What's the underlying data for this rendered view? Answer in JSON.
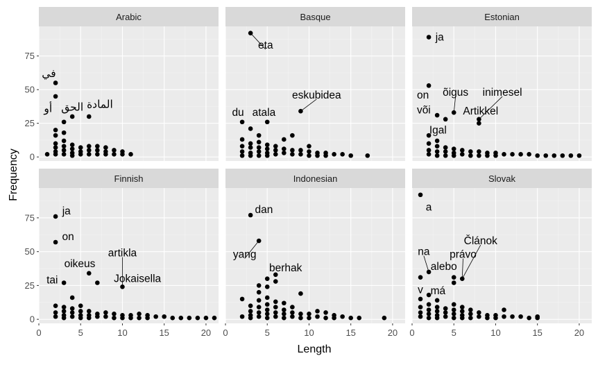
{
  "chart_data": {
    "type": "scatter",
    "xlabel": "Length",
    "ylabel": "Frequency",
    "xlim": [
      0,
      21.5
    ],
    "ylim": [
      -3,
      97
    ],
    "x_ticks": [
      0,
      5,
      10,
      15,
      20
    ],
    "y_ticks": [
      0,
      25,
      50,
      75
    ],
    "grid": true,
    "panels": [
      {
        "name": "Arabic",
        "points": [
          [
            1,
            2
          ],
          [
            2,
            55
          ],
          [
            2,
            45
          ],
          [
            2,
            20
          ],
          [
            2,
            16
          ],
          [
            2,
            10
          ],
          [
            2,
            7
          ],
          [
            2,
            4
          ],
          [
            2,
            2
          ],
          [
            3,
            26
          ],
          [
            3,
            18
          ],
          [
            3,
            12
          ],
          [
            3,
            8
          ],
          [
            3,
            5
          ],
          [
            3,
            2
          ],
          [
            4,
            30
          ],
          [
            4,
            9
          ],
          [
            4,
            6
          ],
          [
            4,
            3
          ],
          [
            4,
            1
          ],
          [
            5,
            7
          ],
          [
            5,
            4
          ],
          [
            5,
            2
          ],
          [
            6,
            30
          ],
          [
            6,
            8
          ],
          [
            6,
            5
          ],
          [
            6,
            2
          ],
          [
            7,
            8
          ],
          [
            7,
            5
          ],
          [
            7,
            2
          ],
          [
            8,
            7
          ],
          [
            8,
            4
          ],
          [
            8,
            2
          ],
          [
            9,
            5
          ],
          [
            9,
            2
          ],
          [
            10,
            4
          ],
          [
            10,
            2
          ],
          [
            11,
            2
          ]
        ],
        "labels": [
          {
            "text": "في",
            "x": 1.2,
            "y": 62
          },
          {
            "text": "أو",
            "x": 1.1,
            "y": 36
          },
          {
            "text": "الحق",
            "x": 4.0,
            "y": 37
          },
          {
            "text": "المادة",
            "x": 7.3,
            "y": 39
          }
        ]
      },
      {
        "name": "Basque",
        "points": [
          [
            2,
            26
          ],
          [
            2,
            13
          ],
          [
            2,
            8
          ],
          [
            2,
            4
          ],
          [
            2,
            1
          ],
          [
            3,
            92
          ],
          [
            3,
            21
          ],
          [
            3,
            10
          ],
          [
            3,
            7
          ],
          [
            3,
            3
          ],
          [
            3,
            1
          ],
          [
            4,
            16
          ],
          [
            4,
            11
          ],
          [
            4,
            7
          ],
          [
            4,
            4
          ],
          [
            4,
            1
          ],
          [
            5,
            26
          ],
          [
            5,
            9
          ],
          [
            5,
            6
          ],
          [
            5,
            3
          ],
          [
            5,
            1
          ],
          [
            6,
            8
          ],
          [
            6,
            5
          ],
          [
            6,
            2
          ],
          [
            7,
            13
          ],
          [
            7,
            6
          ],
          [
            7,
            3
          ],
          [
            8,
            16
          ],
          [
            8,
            5
          ],
          [
            8,
            2
          ],
          [
            9,
            34
          ],
          [
            9,
            5
          ],
          [
            9,
            2
          ],
          [
            10,
            8
          ],
          [
            10,
            4
          ],
          [
            10,
            1
          ],
          [
            11,
            3
          ],
          [
            11,
            1
          ],
          [
            12,
            3
          ],
          [
            12,
            1
          ],
          [
            13,
            2
          ],
          [
            14,
            2
          ],
          [
            15,
            1
          ],
          [
            17,
            1
          ]
        ],
        "labels": [
          {
            "text": "eta",
            "x": 4.8,
            "y": 83
          },
          {
            "text": "du",
            "x": 1.5,
            "y": 33
          },
          {
            "text": "atala",
            "x": 4.6,
            "y": 33
          },
          {
            "text": "eskubidea",
            "x": 10.9,
            "y": 46
          }
        ]
      },
      {
        "name": "Estonian",
        "points": [
          [
            2,
            89
          ],
          [
            2,
            53
          ],
          [
            2,
            16
          ],
          [
            2,
            10
          ],
          [
            2,
            5
          ],
          [
            2,
            2
          ],
          [
            3,
            31
          ],
          [
            3,
            12
          ],
          [
            3,
            8
          ],
          [
            3,
            4
          ],
          [
            3,
            1
          ],
          [
            4,
            28
          ],
          [
            4,
            7
          ],
          [
            4,
            4
          ],
          [
            4,
            1
          ],
          [
            5,
            33
          ],
          [
            5,
            6
          ],
          [
            5,
            3
          ],
          [
            5,
            1
          ],
          [
            6,
            5
          ],
          [
            6,
            2
          ],
          [
            7,
            4
          ],
          [
            7,
            1
          ],
          [
            8,
            28
          ],
          [
            8,
            25
          ],
          [
            8,
            4
          ],
          [
            8,
            1
          ],
          [
            9,
            3
          ],
          [
            9,
            1
          ],
          [
            10,
            3
          ],
          [
            10,
            1
          ],
          [
            11,
            2
          ],
          [
            12,
            2
          ],
          [
            13,
            2
          ],
          [
            14,
            2
          ],
          [
            15,
            1
          ],
          [
            16,
            1
          ],
          [
            17,
            1
          ],
          [
            18,
            1
          ],
          [
            19,
            1
          ],
          [
            20,
            1
          ]
        ],
        "labels": [
          {
            "text": "ja",
            "x": 3.3,
            "y": 89
          },
          {
            "text": "on",
            "x": 1.3,
            "y": 46
          },
          {
            "text": "õigus",
            "x": 5.2,
            "y": 48
          },
          {
            "text": "inimesel",
            "x": 10.8,
            "y": 48
          },
          {
            "text": "või",
            "x": 1.4,
            "y": 35
          },
          {
            "text": "Artikkel",
            "x": 8.2,
            "y": 34
          },
          {
            "text": "Igal",
            "x": 3.1,
            "y": 20
          }
        ]
      },
      {
        "name": "Finnish",
        "points": [
          [
            2,
            76
          ],
          [
            2,
            57
          ],
          [
            2,
            10
          ],
          [
            2,
            5
          ],
          [
            2,
            2
          ],
          [
            3,
            27
          ],
          [
            3,
            9
          ],
          [
            3,
            6
          ],
          [
            3,
            3
          ],
          [
            3,
            1
          ],
          [
            4,
            16
          ],
          [
            4,
            8
          ],
          [
            4,
            5
          ],
          [
            4,
            2
          ],
          [
            5,
            10
          ],
          [
            5,
            6
          ],
          [
            5,
            3
          ],
          [
            5,
            1
          ],
          [
            6,
            34
          ],
          [
            6,
            6
          ],
          [
            6,
            3
          ],
          [
            6,
            1
          ],
          [
            7,
            27
          ],
          [
            7,
            4
          ],
          [
            7,
            2
          ],
          [
            8,
            5
          ],
          [
            8,
            2
          ],
          [
            9,
            4
          ],
          [
            9,
            1
          ],
          [
            10,
            24
          ],
          [
            10,
            3
          ],
          [
            10,
            1
          ],
          [
            11,
            3
          ],
          [
            11,
            1
          ],
          [
            12,
            4
          ],
          [
            12,
            1
          ],
          [
            13,
            3
          ],
          [
            13,
            1
          ],
          [
            14,
            2
          ],
          [
            15,
            2
          ],
          [
            16,
            1
          ],
          [
            17,
            1
          ],
          [
            18,
            1
          ],
          [
            19,
            1
          ],
          [
            20,
            1
          ],
          [
            21,
            1
          ]
        ],
        "labels": [
          {
            "text": "ja",
            "x": 3.3,
            "y": 80
          },
          {
            "text": "on",
            "x": 3.5,
            "y": 61
          },
          {
            "text": "artikla",
            "x": 10.0,
            "y": 49
          },
          {
            "text": "oikeus",
            "x": 4.9,
            "y": 41
          },
          {
            "text": "tai",
            "x": 1.6,
            "y": 29
          },
          {
            "text": "Jokaisella",
            "x": 11.8,
            "y": 30
          }
        ]
      },
      {
        "name": "Indonesian",
        "points": [
          [
            2,
            15
          ],
          [
            2,
            2
          ],
          [
            3,
            77
          ],
          [
            3,
            10
          ],
          [
            3,
            6
          ],
          [
            3,
            3
          ],
          [
            3,
            1
          ],
          [
            4,
            58
          ],
          [
            4,
            25
          ],
          [
            4,
            20
          ],
          [
            4,
            14
          ],
          [
            4,
            9
          ],
          [
            4,
            5
          ],
          [
            4,
            2
          ],
          [
            5,
            30
          ],
          [
            5,
            24
          ],
          [
            5,
            16
          ],
          [
            5,
            11
          ],
          [
            5,
            7
          ],
          [
            5,
            4
          ],
          [
            5,
            1
          ],
          [
            6,
            33
          ],
          [
            6,
            28
          ],
          [
            6,
            13
          ],
          [
            6,
            9
          ],
          [
            6,
            5
          ],
          [
            6,
            2
          ],
          [
            7,
            12
          ],
          [
            7,
            7
          ],
          [
            7,
            4
          ],
          [
            7,
            1
          ],
          [
            8,
            9
          ],
          [
            8,
            5
          ],
          [
            8,
            2
          ],
          [
            9,
            19
          ],
          [
            9,
            4
          ],
          [
            9,
            1
          ],
          [
            10,
            4
          ],
          [
            10,
            1
          ],
          [
            11,
            6
          ],
          [
            11,
            2
          ],
          [
            12,
            5
          ],
          [
            12,
            1
          ],
          [
            13,
            3
          ],
          [
            13,
            1
          ],
          [
            14,
            2
          ],
          [
            15,
            1
          ],
          [
            16,
            1
          ],
          [
            19,
            1
          ]
        ],
        "labels": [
          {
            "text": "dan",
            "x": 4.6,
            "y": 81
          },
          {
            "text": "yang",
            "x": 2.3,
            "y": 48
          },
          {
            "text": "berhak",
            "x": 7.2,
            "y": 38
          }
        ]
      },
      {
        "name": "Slovak",
        "points": [
          [
            1,
            92
          ],
          [
            1,
            31
          ],
          [
            1,
            15
          ],
          [
            1,
            9
          ],
          [
            1,
            5
          ],
          [
            1,
            2
          ],
          [
            2,
            35
          ],
          [
            2,
            18
          ],
          [
            2,
            11
          ],
          [
            2,
            7
          ],
          [
            2,
            4
          ],
          [
            2,
            1
          ],
          [
            3,
            14
          ],
          [
            3,
            9
          ],
          [
            3,
            6
          ],
          [
            3,
            3
          ],
          [
            3,
            1
          ],
          [
            4,
            8
          ],
          [
            4,
            5
          ],
          [
            4,
            2
          ],
          [
            5,
            31
          ],
          [
            5,
            27
          ],
          [
            5,
            11
          ],
          [
            5,
            7
          ],
          [
            5,
            4
          ],
          [
            5,
            1
          ],
          [
            6,
            30
          ],
          [
            6,
            9
          ],
          [
            6,
            6
          ],
          [
            6,
            3
          ],
          [
            6,
            1
          ],
          [
            7,
            7
          ],
          [
            7,
            4
          ],
          [
            7,
            1
          ],
          [
            8,
            5
          ],
          [
            8,
            2
          ],
          [
            9,
            3
          ],
          [
            9,
            1
          ],
          [
            10,
            3
          ],
          [
            10,
            1
          ],
          [
            11,
            7
          ],
          [
            11,
            2
          ],
          [
            12,
            2
          ],
          [
            13,
            2
          ],
          [
            14,
            1
          ],
          [
            15,
            2
          ],
          [
            15,
            1
          ]
        ],
        "labels": [
          {
            "text": "a",
            "x": 2.0,
            "y": 83
          },
          {
            "text": "Článok",
            "x": 8.2,
            "y": 58
          },
          {
            "text": "na",
            "x": 1.4,
            "y": 50
          },
          {
            "text": "právo",
            "x": 6.1,
            "y": 48
          },
          {
            "text": "alebo",
            "x": 3.8,
            "y": 39
          },
          {
            "text": "v",
            "x": 1.0,
            "y": 22
          },
          {
            "text": "má",
            "x": 3.1,
            "y": 21
          }
        ]
      }
    ]
  }
}
